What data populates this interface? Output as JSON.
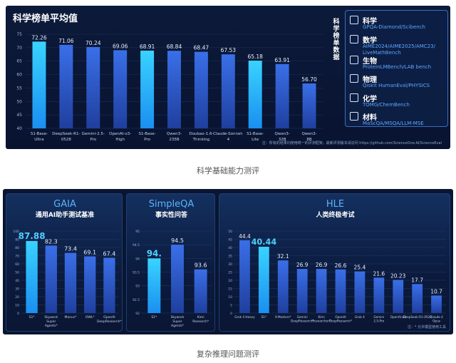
{
  "panel1": {
    "title": "科学榜单平均值",
    "vertical_label": "科学榜单数据",
    "note": "注：所有的结果均使用统一的评测框架。最新评测版本请访问 https://github.com/ScienceOne-AI/ScienceEval",
    "legend": [
      {
        "name": "科学",
        "desc": "GPQA-Diamond/Scibench",
        "icon": "atom-icon"
      },
      {
        "name": "数学",
        "desc": "AIME2024/AIME2025/AMC23/ LiveMathBench",
        "icon": "math-icon"
      },
      {
        "name": "生物",
        "desc": "ProteinLMBench/LAB bench",
        "icon": "dna-icon"
      },
      {
        "name": "物理",
        "desc": "Qiskit HumanEval/PHYSICS",
        "icon": "physics-icon"
      },
      {
        "name": "化学",
        "desc": "TOMG/ChemBench",
        "icon": "flask-icon"
      },
      {
        "name": "材料",
        "desc": "MaScQA/MSQA/LLM-MSE",
        "icon": "cube-icon"
      }
    ]
  },
  "captions": {
    "first": "科学基础能力测评",
    "second": "复杂推理问题测评"
  },
  "panel2": {
    "note": "注：* 允许模型使用工具"
  },
  "colors": {
    "highlight": "#2ab8ff",
    "normal": "#2d5fd6"
  },
  "chart_data": [
    {
      "type": "bar",
      "title": "科学榜单平均值",
      "categories": [
        "S1-Base-Ultra",
        "DeepSeek-R1-0528",
        "Gemini-2.5-Pro",
        "OpenAI-o3-High",
        "S1-Base-Pro",
        "Qwen3-235B",
        "Doubao-1.6-Thinking",
        "Claude-Sonnet-4",
        "S1-Base-Lite",
        "Qwen3-32B",
        "Qwen3-8B"
      ],
      "values": [
        72.26,
        71.06,
        70.24,
        69.06,
        68.91,
        68.84,
        68.47,
        67.53,
        65.18,
        63.91,
        56.7
      ],
      "highlight": [
        true,
        false,
        false,
        false,
        true,
        false,
        false,
        false,
        true,
        false,
        false
      ],
      "y_ticks": [
        40,
        45,
        50,
        55,
        60,
        65,
        70,
        75
      ],
      "ylim": [
        40,
        75
      ]
    },
    {
      "type": "bar",
      "title": "GAIA",
      "subtitle": "通用AI助手测试基准",
      "categories": [
        "S1*",
        "Skywork Super Agents*",
        "Manus*",
        "OWL*",
        "OpenAI DeepResearch*"
      ],
      "values": [
        87.88,
        82.3,
        73.4,
        69.1,
        67.4
      ],
      "highlight": [
        true,
        false,
        false,
        false,
        false
      ],
      "y_ticks": [
        0,
        10,
        20,
        30,
        40,
        50,
        60,
        70,
        80,
        90,
        100
      ],
      "ylim": [
        0,
        100
      ]
    },
    {
      "type": "bar",
      "title": "SimpleQA",
      "subtitle": "事实性问答",
      "categories": [
        "S1*",
        "Skywork Super Agents*",
        "Kimi Research*"
      ],
      "values": [
        94.0,
        94.5,
        93.6
      ],
      "value_labels": [
        "94.",
        "94.5",
        "93.6"
      ],
      "highlight": [
        true,
        false,
        false
      ],
      "y_ticks": [
        92.0,
        92.5,
        93.0,
        93.5,
        94.0,
        94.5,
        95.0
      ],
      "ylim": [
        92.0,
        95.0
      ]
    },
    {
      "type": "bar",
      "title": "HLE",
      "subtitle": "人类终极考试",
      "categories": [
        "Grok 4 Heavy",
        "S1*",
        "X-Masters*",
        "Gemini DeepResearch*",
        "Kimi Researcher*",
        "OpenAI DeepResearch*",
        "Grok 4",
        "Gemini 2.5-Pro",
        "OpenAI-o3",
        "DeepSeek-R1-0528",
        "Claude 4 Opus"
      ],
      "values": [
        44.4,
        40.44,
        32.1,
        26.9,
        26.9,
        26.6,
        25.4,
        21.6,
        20.23,
        17.7,
        10.7
      ],
      "highlight": [
        false,
        true,
        false,
        false,
        false,
        false,
        false,
        false,
        false,
        false,
        false
      ],
      "y_ticks": [
        0,
        5,
        10,
        15,
        20,
        25,
        30,
        35,
        40,
        45,
        50
      ],
      "ylim": [
        0,
        50
      ]
    }
  ]
}
